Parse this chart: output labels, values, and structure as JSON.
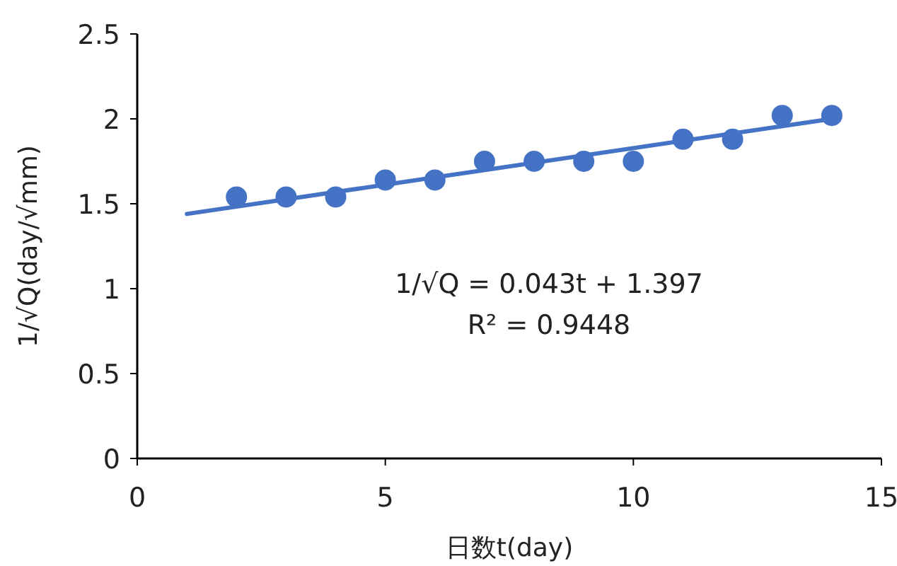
{
  "chart_data": {
    "type": "scatter",
    "xlabel": "日数t(day)",
    "ylabel": "1/√Q(day/√mm)",
    "x": [
      2,
      3,
      4,
      5,
      6,
      7,
      8,
      9,
      10,
      11,
      12,
      13,
      14
    ],
    "series": [
      {
        "color": "#4472c4",
        "values": [
          1.54,
          1.54,
          1.54,
          1.64,
          1.64,
          1.75,
          1.75,
          1.75,
          1.75,
          1.88,
          1.88,
          2.02,
          2.02
        ]
      },
      {
        "type": "line",
        "color": "#4472c4",
        "marker": "none",
        "x": [
          1,
          14
        ],
        "values": [
          1.44,
          2.0
        ]
      }
    ],
    "xlim": [
      0,
      15
    ],
    "xticks": [
      0,
      5,
      10,
      15
    ],
    "ylim": [
      0,
      2.5
    ],
    "yticks": [
      0,
      0.5,
      1,
      1.5,
      2,
      2.5
    ],
    "marker": "circle",
    "grid": false,
    "annotations": [
      "1/√Q = 0.043t + 1.397",
      "R² = 0.9448"
    ]
  }
}
